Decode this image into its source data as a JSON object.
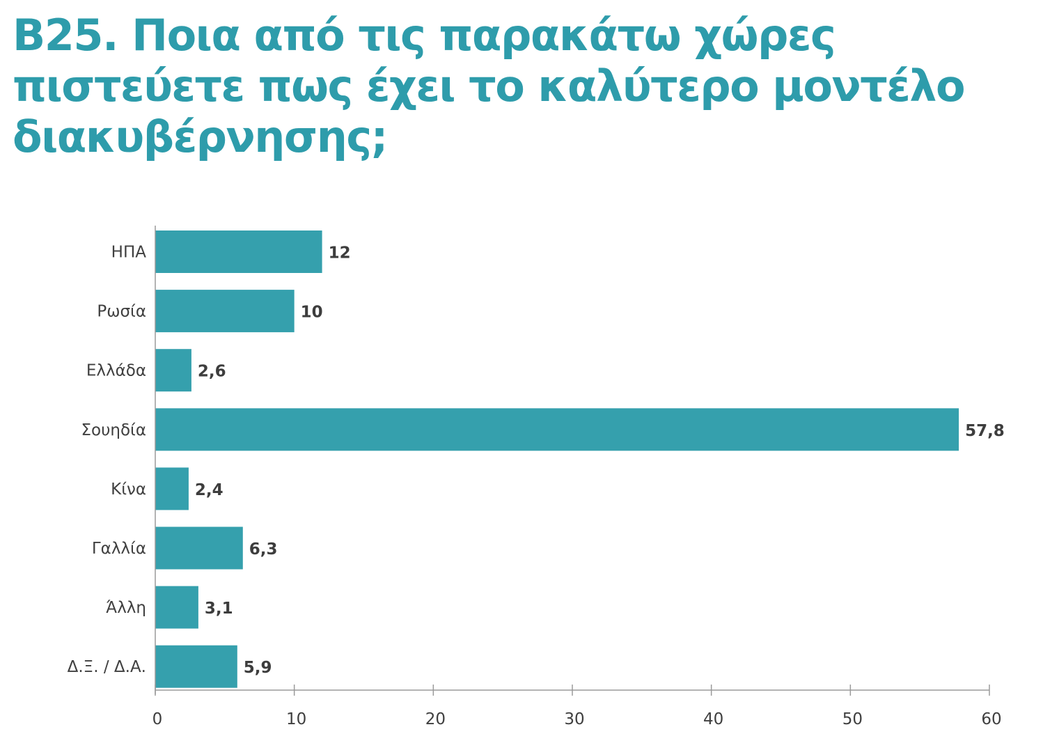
{
  "header": {
    "title_lines": [
      "Β25. Ποια από τις παρακάτω χώρες",
      "πιστεύετε πως έχει το καλύτερο μοντέλο",
      "διακυβέρνησης;"
    ]
  },
  "colors": {
    "title": "#2e9cab",
    "bar": "#35a0ad",
    "axis": "#9a9a9a",
    "category_label": "#3f3f3f",
    "value_label": "#3d3d3d",
    "tick_label": "#3f3f3f"
  },
  "chart_data": {
    "type": "bar",
    "orientation": "horizontal",
    "title": "Β25. Ποια από τις παρακάτω χώρες πιστεύετε πως έχει το καλύτερο μοντέλο διακυβέρνησης;",
    "categories": [
      "ΗΠΑ",
      "Ρωσία",
      "Ελλάδα",
      "Σουηδία",
      "Κίνα",
      "Γαλλία",
      "Άλλη",
      "Δ.Ξ. / Δ.Α."
    ],
    "values": [
      12,
      10,
      2.6,
      57.8,
      2.4,
      6.3,
      3.1,
      5.9
    ],
    "value_labels": [
      "12",
      "10",
      "2,6",
      "57,8",
      "2,4",
      "6,3",
      "3,1",
      "5,9"
    ],
    "xlim": [
      0,
      60
    ],
    "xticks": [
      0,
      10,
      20,
      30,
      40,
      50,
      60
    ],
    "xtick_labels": [
      "0",
      "10",
      "20",
      "30",
      "40",
      "50",
      "60"
    ],
    "grid": false,
    "legend": "none"
  }
}
